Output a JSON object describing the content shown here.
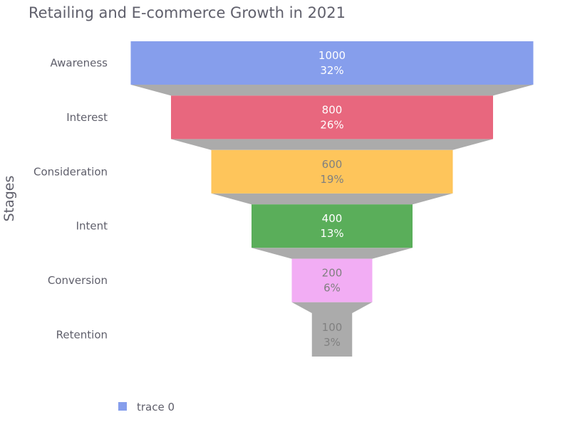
{
  "chart_data": {
    "type": "funnel",
    "title": "Retailing and E-commerce Growth in 2021",
    "ylabel": "Stages",
    "xlabel": "",
    "categories": [
      "Awareness",
      "Interest",
      "Consideration",
      "Intent",
      "Conversion",
      "Retention"
    ],
    "values": [
      1000,
      800,
      600,
      400,
      200,
      100
    ],
    "percent_labels": [
      "32%",
      "26%",
      "19%",
      "13%",
      "6%",
      "3%"
    ],
    "colors": [
      "#869EEC",
      "#E8677E",
      "#FEC55B",
      "#5AAE5A",
      "#F2ADF4",
      "#ABABAB"
    ],
    "label_colors": [
      "#ffffff",
      "#ffffff",
      "#808080",
      "#ffffff",
      "#808080",
      "#808080"
    ],
    "connector_color": "#ABABAB",
    "legend": [
      {
        "name": "trace 0",
        "color": "#869EEC"
      }
    ],
    "legend_position": "bottom-left"
  }
}
